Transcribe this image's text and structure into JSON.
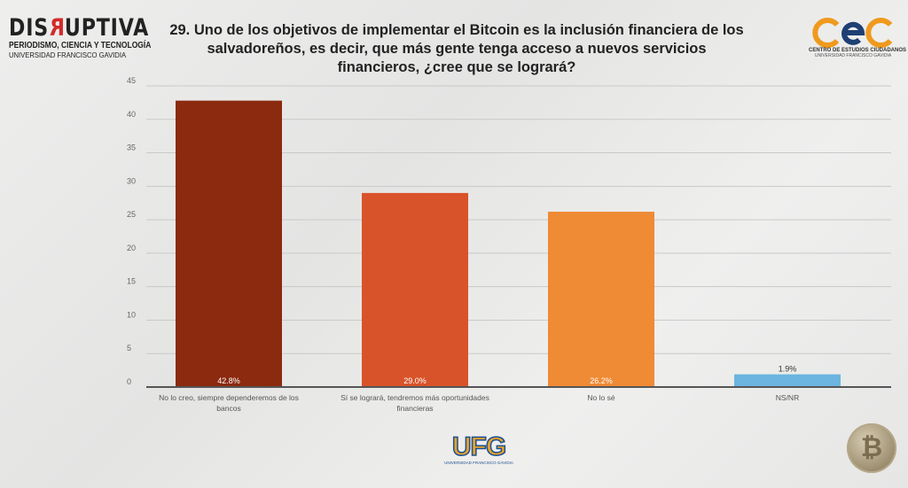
{
  "header": {
    "brand_left": {
      "name_pre": "DIS",
      "name_r": "R",
      "name_post": "UPTIVA",
      "line1": "PERIODISMO, CIENCIA Y TECNOLOGÍA",
      "line2": "UNIVERSIDAD FRANCISCO GAVIDIA"
    },
    "brand_right": {
      "logo": "cec",
      "line1": "CENTRO DE ESTUDIOS CIUDADANOS",
      "line2": "UNIVERSIDAD FRANCISCO GAVIDIA"
    },
    "footer_logo": {
      "name": "UFG",
      "line": "UNIVERSIDAD FRANCISCO GAVIDIA"
    }
  },
  "chart_data": {
    "type": "bar",
    "title": "29. Uno de los objetivos de implementar el Bitcoin es la inclusión financiera de los salvadoreños, es decir, que más gente tenga acceso a nuevos servicios financieros, ¿cree que se logrará?",
    "categories": [
      "No lo creo, siempre dependeremos de los bancos",
      "Sí se logrará, tendremos más oportunidades financieras",
      "No lo sé",
      "NS/NR"
    ],
    "values": [
      42.8,
      29.0,
      26.2,
      1.9
    ],
    "data_labels": [
      "42.8%",
      "29.0%",
      "26.2%",
      "1.9%"
    ],
    "colors": [
      "#8b2a0f",
      "#d9532a",
      "#ef8a35",
      "#6cb5e0"
    ],
    "ylim": [
      0,
      45
    ],
    "yticks": [
      0,
      5,
      10,
      15,
      20,
      25,
      30,
      35,
      40,
      45
    ],
    "xlabel": "",
    "ylabel": "",
    "grid": true,
    "legend": "none"
  }
}
